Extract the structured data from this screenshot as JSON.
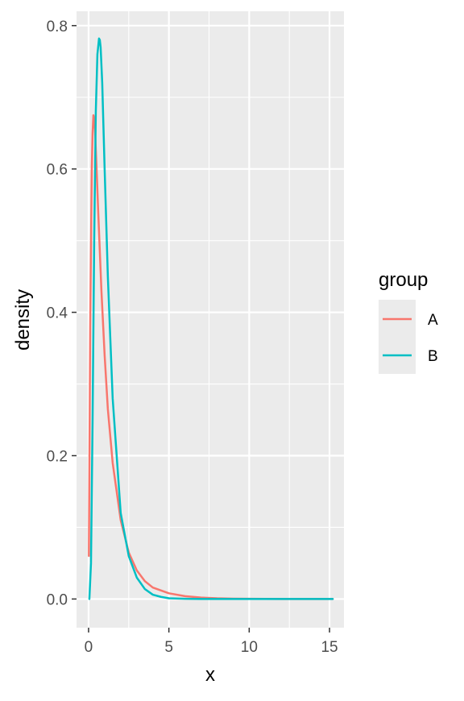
{
  "chart_data": {
    "type": "line",
    "title": "",
    "xlabel": "x",
    "ylabel": "density",
    "xlim": [
      -0.75,
      15.9
    ],
    "ylim": [
      -0.04,
      0.82
    ],
    "xticks": [
      0,
      5,
      10,
      15
    ],
    "yticks": [
      0.0,
      0.2,
      0.4,
      0.6,
      0.8
    ],
    "xtick_labels": [
      "0",
      "5",
      "10",
      "15"
    ],
    "ytick_labels": [
      "0.0",
      "0.2",
      "0.4",
      "0.6",
      "0.8"
    ],
    "grid": true,
    "legend": {
      "title": "group",
      "placement": "right"
    },
    "colors": {
      "panel_background": "#EBEBEB",
      "grid_line": "#FFFFFF",
      "axis_text": "#4D4D4D",
      "axis_tick": "#333333"
    },
    "series": [
      {
        "name": "A",
        "color": "#F8766D",
        "x": [
          0.02,
          0.1,
          0.2,
          0.25,
          0.3,
          0.35,
          0.4,
          0.5,
          0.6,
          0.8,
          1.0,
          1.2,
          1.5,
          2.0,
          2.5,
          3.0,
          3.5,
          4.0,
          5.0,
          6.0,
          7.0,
          8.0,
          9.0,
          10.0,
          12.0,
          15.2
        ],
        "y": [
          0.06,
          0.38,
          0.6,
          0.65,
          0.675,
          0.67,
          0.655,
          0.6,
          0.54,
          0.43,
          0.34,
          0.265,
          0.19,
          0.11,
          0.065,
          0.04,
          0.025,
          0.016,
          0.008,
          0.004,
          0.002,
          0.001,
          0.0005,
          0.0003,
          0.0001,
          0.0
        ]
      },
      {
        "name": "B",
        "color": "#00BFC4",
        "x": [
          0.05,
          0.15,
          0.25,
          0.35,
          0.45,
          0.55,
          0.65,
          0.7,
          0.75,
          0.85,
          1.0,
          1.2,
          1.5,
          2.0,
          2.5,
          3.0,
          3.5,
          4.0,
          4.5,
          5.0,
          6.0,
          7.0,
          8.0,
          10.0,
          15.2
        ],
        "y": [
          0.0,
          0.05,
          0.25,
          0.5,
          0.68,
          0.76,
          0.782,
          0.78,
          0.77,
          0.72,
          0.6,
          0.45,
          0.28,
          0.12,
          0.06,
          0.03,
          0.014,
          0.006,
          0.003,
          0.001,
          0.0003,
          0.0001,
          0.0,
          0.0,
          0.0
        ]
      }
    ]
  }
}
